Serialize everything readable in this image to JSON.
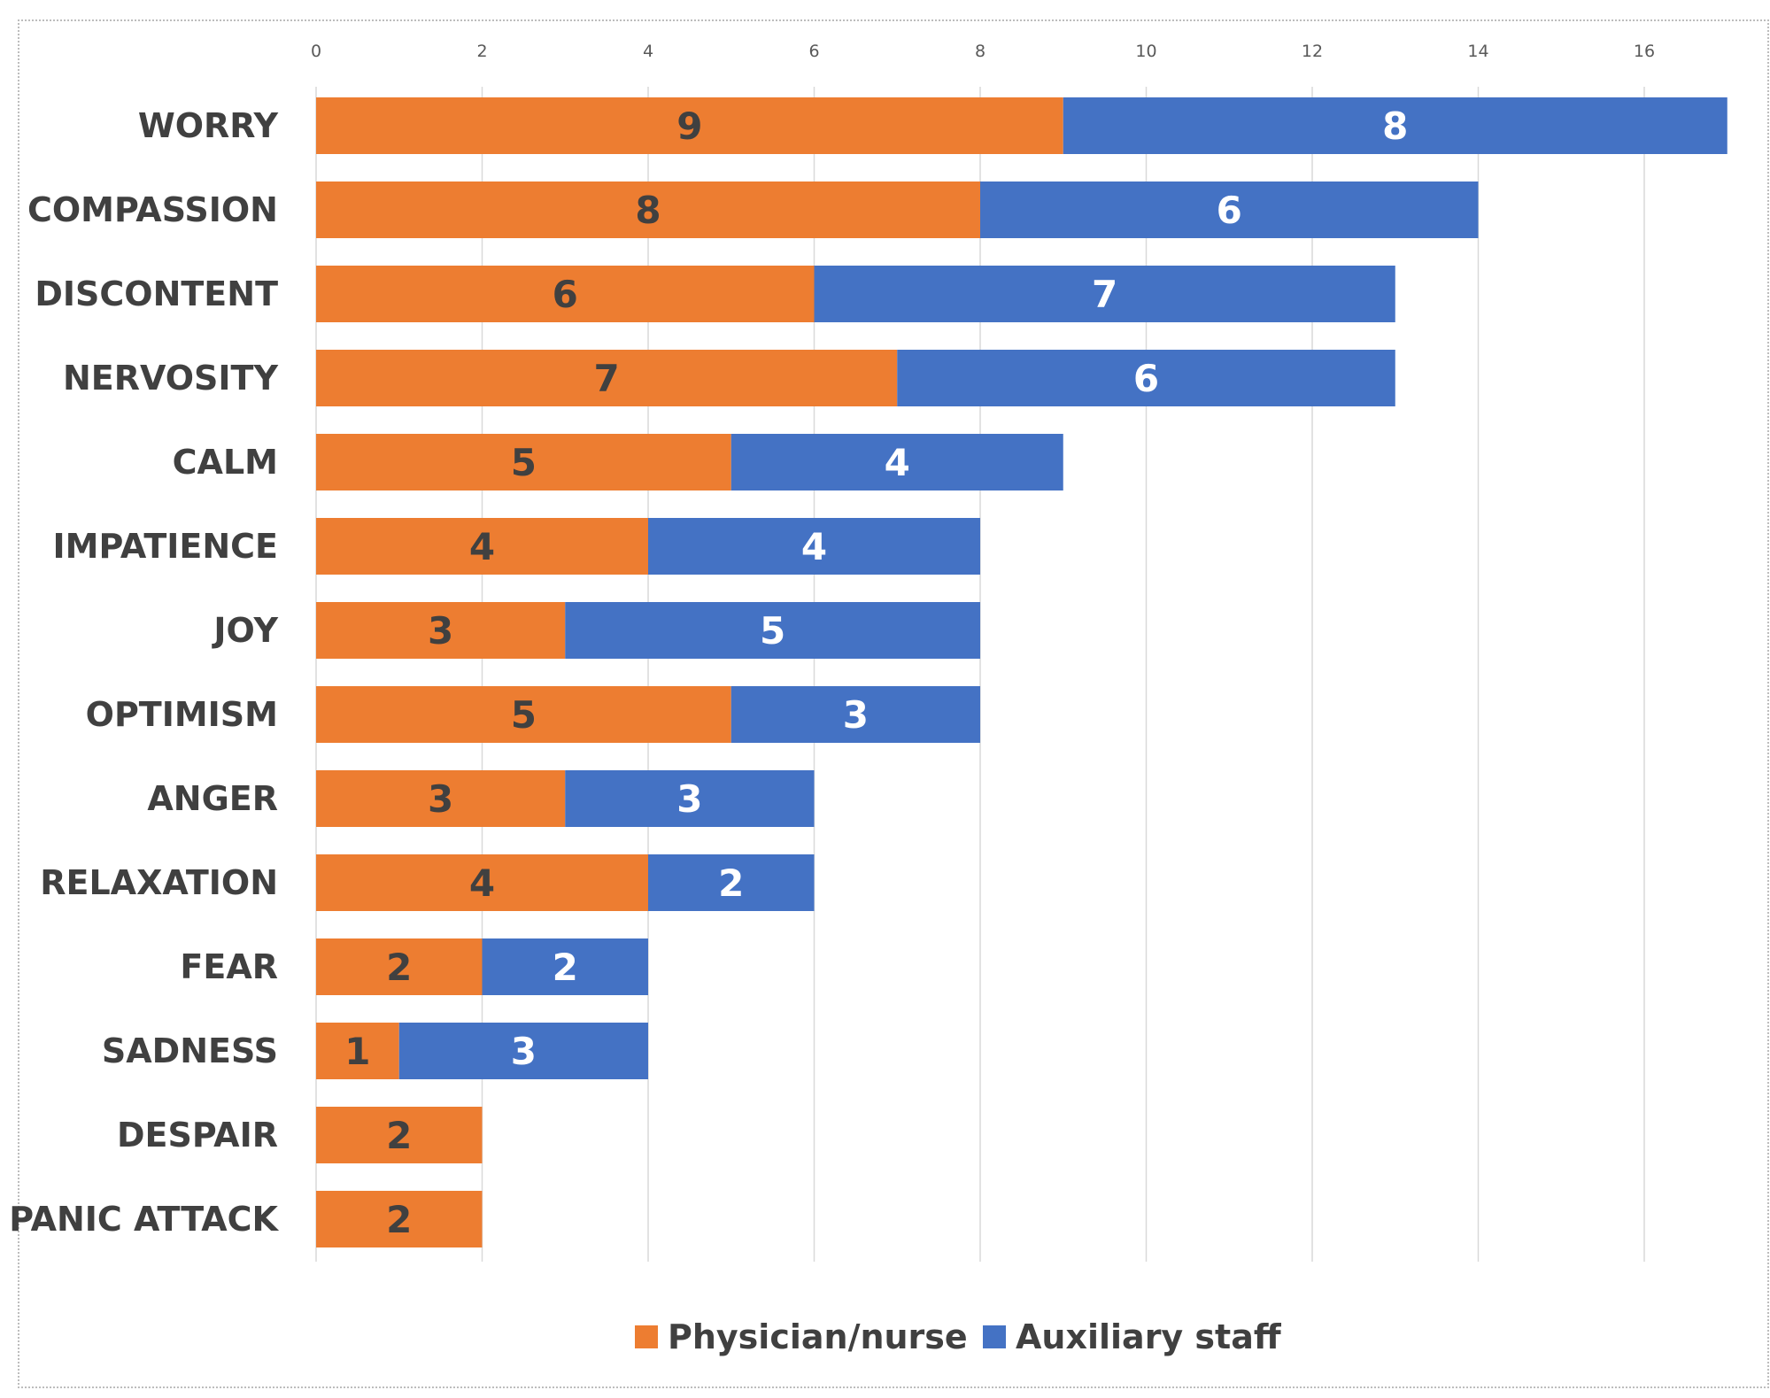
{
  "chart_data": {
    "type": "bar",
    "orientation": "horizontal",
    "stacked": true,
    "title": "",
    "xlabel": "",
    "ylabel": "",
    "xlim": [
      0,
      17
    ],
    "xticks": [
      0,
      2,
      4,
      6,
      8,
      10,
      12,
      14,
      16
    ],
    "xtick_labels": [
      "0",
      "2",
      "4",
      "6",
      "8",
      "10",
      "12",
      "14",
      "16"
    ],
    "grid": "vertical",
    "legend_position": "bottom",
    "categories": [
      "WORRY",
      "COMPASSION",
      "DISCONTENT",
      "NERVOSITY",
      "CALM",
      "IMPATIENCE",
      "JOY",
      "OPTIMISM",
      "ANGER",
      "RELAXATION",
      "FEAR",
      "SADNESS",
      "DESPAIR",
      "PANIC ATTACK"
    ],
    "series": [
      {
        "name": "Physician/nurse",
        "color": "#ED7D31",
        "label_color": "#404040",
        "values": [
          9,
          8,
          6,
          7,
          5,
          4,
          3,
          5,
          3,
          4,
          2,
          1,
          2,
          2
        ]
      },
      {
        "name": "Auxiliary staff",
        "color": "#4472C4",
        "label_color": "#FFFFFF",
        "values": [
          8,
          6,
          7,
          6,
          4,
          4,
          5,
          3,
          3,
          2,
          2,
          3,
          0,
          0
        ]
      }
    ]
  }
}
